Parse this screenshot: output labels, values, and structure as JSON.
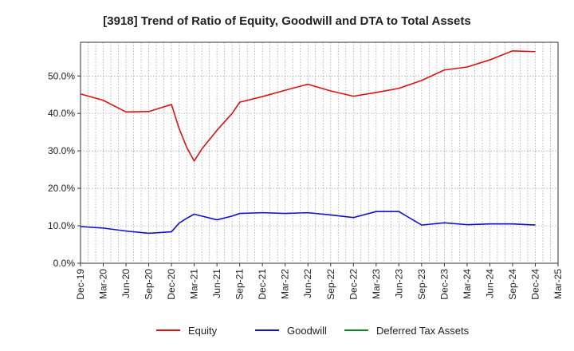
{
  "chart_data": {
    "type": "line",
    "title": "[3918]  Trend of Ratio of Equity, Goodwill and DTA to Total Assets",
    "x": [
      "Dec-19",
      "Mar-20",
      "Jun-20",
      "Sep-20",
      "Dec-20",
      "Jan-21",
      "Feb-21",
      "Mar-21",
      "Apr-21",
      "Jun-21",
      "Aug-21",
      "Sep-21",
      "Dec-21",
      "Mar-22",
      "Jun-22",
      "Sep-22",
      "Dec-22",
      "Mar-23",
      "Jun-23",
      "Sep-23",
      "Dec-23",
      "Mar-24",
      "Jun-24",
      "Sep-24",
      "Dec-24"
    ],
    "x_tick_labels": [
      "Dec-19",
      "Mar-20",
      "Jun-20",
      "Sep-20",
      "Dec-20",
      "Mar-21",
      "Jun-21",
      "Sep-21",
      "Dec-21",
      "Mar-22",
      "Jun-22",
      "Sep-22",
      "Dec-22",
      "Mar-23",
      "Jun-23",
      "Sep-23",
      "Dec-23",
      "Mar-24",
      "Jun-24",
      "Sep-24",
      "Dec-24",
      "Mar-25"
    ],
    "y_tick_labels": [
      "0.0%",
      "10.0%",
      "20.0%",
      "30.0%",
      "40.0%",
      "50.0%"
    ],
    "ylim": [
      0,
      59
    ],
    "grid": true,
    "legend_position": "bottom",
    "series": [
      {
        "name": "Equity",
        "color": "#dd1111",
        "points": [
          [
            "Dec-19",
            45.2
          ],
          [
            "Mar-20",
            43.5
          ],
          [
            "Jun-20",
            40.4
          ],
          [
            "Sep-20",
            40.5
          ],
          [
            "Dec-20",
            42.4
          ],
          [
            "Jan-21",
            36.0
          ],
          [
            "Feb-21",
            31.0
          ],
          [
            "Mar-21",
            27.3
          ],
          [
            "Apr-21",
            30.5
          ],
          [
            "Jun-21",
            35.5
          ],
          [
            "Aug-21",
            40.0
          ],
          [
            "Sep-21",
            43.0
          ],
          [
            "Dec-21",
            44.5
          ],
          [
            "Mar-22",
            46.2
          ],
          [
            "Jun-22",
            47.8
          ],
          [
            "Sep-22",
            46.0
          ],
          [
            "Dec-22",
            44.6
          ],
          [
            "Mar-23",
            45.6
          ],
          [
            "Jun-23",
            46.7
          ],
          [
            "Sep-23",
            48.8
          ],
          [
            "Dec-23",
            51.6
          ],
          [
            "Mar-24",
            52.4
          ],
          [
            "Jun-24",
            54.3
          ],
          [
            "Sep-24",
            56.7
          ],
          [
            "Dec-24",
            56.5
          ]
        ]
      },
      {
        "name": "Goodwill",
        "color": "#1111cc",
        "points": [
          [
            "Dec-19",
            9.8
          ],
          [
            "Mar-20",
            9.4
          ],
          [
            "Jun-20",
            8.6
          ],
          [
            "Sep-20",
            8.0
          ],
          [
            "Dec-20",
            8.4
          ],
          [
            "Jan-21",
            10.7
          ],
          [
            "Feb-21",
            12.0
          ],
          [
            "Mar-21",
            13.1
          ],
          [
            "Apr-21",
            12.6
          ],
          [
            "Jun-21",
            11.6
          ],
          [
            "Aug-21",
            12.6
          ],
          [
            "Sep-21",
            13.3
          ],
          [
            "Dec-21",
            13.5
          ],
          [
            "Mar-22",
            13.3
          ],
          [
            "Jun-22",
            13.5
          ],
          [
            "Sep-22",
            12.9
          ],
          [
            "Dec-22",
            12.2
          ],
          [
            "Mar-23",
            13.8
          ],
          [
            "Jun-23",
            13.8
          ],
          [
            "Sep-23",
            10.2
          ],
          [
            "Dec-23",
            10.8
          ],
          [
            "Mar-24",
            10.3
          ],
          [
            "Jun-24",
            10.5
          ],
          [
            "Sep-24",
            10.5
          ],
          [
            "Dec-24",
            10.2
          ]
        ]
      },
      {
        "name": "Deferred Tax Assets",
        "color": "#11881e",
        "points": []
      }
    ]
  }
}
